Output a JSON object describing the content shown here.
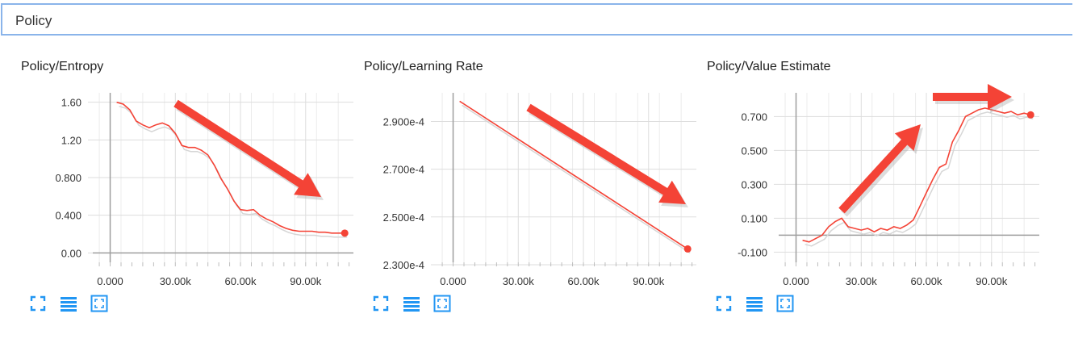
{
  "section": {
    "title": "Policy"
  },
  "colors": {
    "series": "#f44336",
    "smoothed_shadow": "#d6d6d6",
    "grid": "#dddddd",
    "axis": "#9e9e9e",
    "arrow": "#f44336",
    "tool_icon": "#2196f3"
  },
  "icons": {
    "fit": "fit-domain-icon",
    "log": "log-scale-icon",
    "expand": "expand-icon"
  },
  "chart_data": [
    {
      "type": "line",
      "title": "Policy/Entropy",
      "xlim": [
        -8000,
        112000
      ],
      "ylim": [
        -0.1,
        1.7
      ],
      "xticks": [
        0,
        30000,
        60000,
        90000
      ],
      "xtick_labels": [
        "0.000",
        "30.00k",
        "60.00k",
        "90.00k"
      ],
      "yticks": [
        0,
        0.4,
        0.8,
        1.2,
        1.6
      ],
      "ytick_labels": [
        "0.00",
        "0.400",
        "0.800",
        "1.20",
        "1.60"
      ],
      "grid": true,
      "series": [
        {
          "x": [
            3000,
            6000,
            9000,
            12000,
            15000,
            18000,
            21000,
            24000,
            27000,
            30000,
            33000,
            36000,
            39000,
            42000,
            45000,
            48000,
            51000,
            54000,
            57000,
            60000,
            63000,
            66000,
            69000,
            72000,
            75000,
            78000,
            81000,
            84000,
            87000,
            90000,
            93000,
            96000,
            99000,
            102000,
            105000,
            108000
          ],
          "y": [
            1.6,
            1.58,
            1.52,
            1.4,
            1.36,
            1.33,
            1.36,
            1.38,
            1.35,
            1.27,
            1.14,
            1.12,
            1.12,
            1.09,
            1.04,
            0.93,
            0.79,
            0.68,
            0.55,
            0.46,
            0.45,
            0.46,
            0.4,
            0.36,
            0.33,
            0.29,
            0.26,
            0.24,
            0.23,
            0.23,
            0.23,
            0.22,
            0.22,
            0.21,
            0.21,
            0.21
          ]
        }
      ]
    },
    {
      "type": "line",
      "title": "Policy/Learning Rate",
      "xlim": [
        -8000,
        112000
      ],
      "ylim": [
        0.000231,
        0.000302
      ],
      "xticks": [
        0,
        30000,
        60000,
        90000
      ],
      "xtick_labels": [
        "0.000",
        "30.00k",
        "60.00k",
        "90.00k"
      ],
      "yticks": [
        0.00023,
        0.00025,
        0.00027,
        0.00029
      ],
      "ytick_labels": [
        "2.300e-4",
        "2.500e-4",
        "2.700e-4",
        "2.900e-4"
      ],
      "grid": true,
      "series": [
        {
          "x": [
            3000,
            108000
          ],
          "y": [
            0.0002985,
            0.0002366
          ]
        }
      ]
    },
    {
      "type": "line",
      "title": "Policy/Value Estimate",
      "xlim": [
        -8000,
        112000
      ],
      "ylim": [
        -0.16,
        0.84
      ],
      "xticks": [
        0,
        30000,
        60000,
        90000
      ],
      "xtick_labels": [
        "0.000",
        "30.00k",
        "60.00k",
        "90.00k"
      ],
      "yticks": [
        -0.1,
        0.1,
        0.3,
        0.5,
        0.7
      ],
      "ytick_labels": [
        "-0.100",
        "0.100",
        "0.300",
        "0.500",
        "0.700"
      ],
      "grid": true,
      "series": [
        {
          "x": [
            3000,
            6000,
            9000,
            12000,
            15000,
            18000,
            21000,
            24000,
            27000,
            30000,
            33000,
            36000,
            39000,
            42000,
            45000,
            48000,
            51000,
            54000,
            57000,
            60000,
            63000,
            66000,
            69000,
            72000,
            75000,
            78000,
            81000,
            84000,
            87000,
            90000,
            93000,
            96000,
            99000,
            102000,
            105000,
            108000
          ],
          "y": [
            -0.03,
            -0.04,
            -0.02,
            0.0,
            0.05,
            0.08,
            0.1,
            0.05,
            0.04,
            0.03,
            0.04,
            0.02,
            0.04,
            0.03,
            0.05,
            0.04,
            0.06,
            0.09,
            0.17,
            0.25,
            0.33,
            0.4,
            0.42,
            0.55,
            0.62,
            0.7,
            0.72,
            0.74,
            0.75,
            0.74,
            0.73,
            0.72,
            0.73,
            0.71,
            0.72,
            0.71
          ]
        }
      ]
    }
  ]
}
